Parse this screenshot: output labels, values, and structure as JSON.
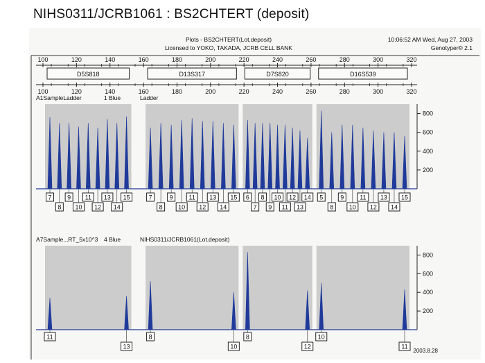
{
  "page_title": "NIHS0311/JCRB1061 : BS2CHTERT (deposit)",
  "header": {
    "plot_title": "Plots - BS2CHTERT(Lot.deposit)",
    "license": "Licensed to YOKO, TAKADA, JCRB CELL BANK",
    "timestamp": "10:06:52 AM Wed, Aug 27, 2003",
    "software": "Genotyper® 2.1"
  },
  "date_stamp": "2003.8.28",
  "colors": {
    "trace": "#1f3a9a",
    "shade": "#bdbdbd"
  },
  "chart_data": {
    "type": "line",
    "x_axis": {
      "ticks": [
        "100",
        "120",
        "140",
        "160",
        "180",
        "200",
        "220",
        "240",
        "260",
        "280",
        "300",
        "320"
      ]
    },
    "y_axis": {
      "ticks": [
        "800",
        "600",
        "400",
        "200"
      ],
      "ylim": [
        0,
        900
      ]
    },
    "loci": [
      {
        "name": "D5S818",
        "range": [
          100,
          154
        ]
      },
      {
        "name": "D13S317",
        "range": [
          160,
          218
        ]
      },
      {
        "name": "D7S820",
        "range": [
          218,
          262
        ]
      },
      {
        "name": "D16S539",
        "range": [
          262,
          320
        ]
      }
    ],
    "panels": [
      {
        "sample_label": "A1SampleLadder",
        "dye_label": "1 Blue",
        "extra_label": "Ladder",
        "loci_peaks": [
          {
            "locus": "D5S818",
            "alleles": [
              "7",
              "8",
              "9",
              "10",
              "11",
              "12",
              "13",
              "14",
              "15"
            ],
            "heights": [
              760,
              700,
              700,
              660,
              700,
              650,
              740,
              700,
              770
            ]
          },
          {
            "locus": "D13S317",
            "alleles": [
              "7",
              "8",
              "9",
              "10",
              "11",
              "12",
              "13",
              "14",
              "15"
            ],
            "heights": [
              650,
              700,
              680,
              730,
              750,
              720,
              720,
              700,
              680
            ]
          },
          {
            "locus": "D7S820",
            "alleles": [
              "6",
              "7",
              "8",
              "9",
              "10",
              "11",
              "12",
              "13",
              "14"
            ],
            "heights": [
              730,
              700,
              700,
              700,
              680,
              680,
              650,
              620,
              540
            ]
          },
          {
            "locus": "D16S539",
            "alleles": [
              "5",
              "8",
              "9",
              "10",
              "11",
              "12",
              "13",
              "14",
              "15"
            ],
            "heights": [
              830,
              600,
              680,
              680,
              650,
              620,
              600,
              600,
              560
            ]
          }
        ]
      },
      {
        "sample_label": "A7Sample...RT_5x10^3",
        "dye_label": "4 Blue",
        "extra_label": "NIHS0311/JCRB1061(Lot.deposit)",
        "loci_peaks": [
          {
            "locus": "D5S818",
            "alleles": [
              "11",
              "13"
            ],
            "heights": [
              340,
              360
            ]
          },
          {
            "locus": "D13S317",
            "alleles": [
              "8",
              "10"
            ],
            "heights": [
              520,
              400
            ]
          },
          {
            "locus": "D7S820",
            "alleles": [
              "8",
              "12"
            ],
            "heights": [
              830,
              420
            ]
          },
          {
            "locus": "D16S539",
            "alleles": [
              "10",
              "11"
            ],
            "heights": [
              500,
              430
            ]
          }
        ]
      }
    ]
  }
}
